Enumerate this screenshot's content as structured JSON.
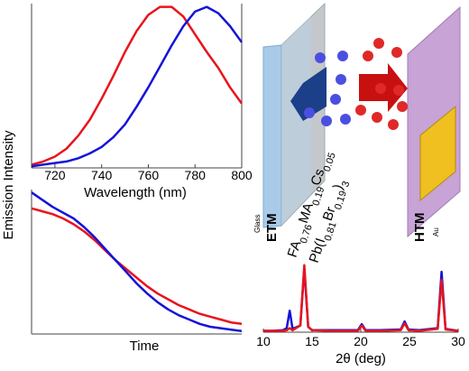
{
  "figure": {
    "ylabel": "Emission Intensity"
  },
  "diagram": {
    "glass": "Glass",
    "etm": "ETM",
    "htm": "HTM",
    "au": "Au",
    "formula_line1": [
      "FA",
      "0.76",
      "MA",
      "0.19",
      "Cs",
      "0.05"
    ],
    "formula_line2": [
      "Pb(I",
      "0.81",
      "Br",
      "0.19",
      ")",
      "3"
    ]
  },
  "chart_data": [
    {
      "type": "line",
      "xlabel": "Wavelength (nm)",
      "x": [
        710,
        715,
        720,
        725,
        730,
        735,
        740,
        745,
        750,
        755,
        760,
        765,
        770,
        775,
        780,
        785,
        790,
        795,
        800
      ],
      "xlim": [
        710,
        800
      ],
      "xticks": [
        720,
        740,
        760,
        780,
        800
      ],
      "ylim": [
        0,
        1.02
      ],
      "series": [
        {
          "color": "#e8141c",
          "values": [
            0.02,
            0.04,
            0.07,
            0.12,
            0.2,
            0.3,
            0.43,
            0.57,
            0.72,
            0.85,
            0.95,
            1.0,
            1.0,
            0.94,
            0.83,
            0.72,
            0.62,
            0.5,
            0.4
          ]
        },
        {
          "color": "#1414d8",
          "values": [
            0.01,
            0.02,
            0.03,
            0.04,
            0.06,
            0.09,
            0.13,
            0.19,
            0.27,
            0.38,
            0.5,
            0.63,
            0.76,
            0.88,
            0.97,
            1.0,
            0.96,
            0.88,
            0.78
          ]
        }
      ]
    },
    {
      "type": "line",
      "xlabel": "Time",
      "categories": [
        null,
        null,
        null,
        null,
        null,
        null,
        null,
        null,
        null,
        null,
        null,
        null,
        null,
        null,
        null,
        null,
        null,
        null,
        null,
        null,
        null
      ],
      "ylim": [
        0,
        1
      ],
      "series": [
        {
          "color": "#e8141c",
          "values": [
            0.87,
            0.85,
            0.83,
            0.8,
            0.76,
            0.71,
            0.65,
            0.58,
            0.51,
            0.45,
            0.39,
            0.33,
            0.28,
            0.24,
            0.2,
            0.17,
            0.14,
            0.12,
            0.1,
            0.08,
            0.07
          ]
        },
        {
          "color": "#1414d8",
          "values": [
            0.98,
            0.93,
            0.88,
            0.84,
            0.8,
            0.74,
            0.67,
            0.59,
            0.51,
            0.43,
            0.35,
            0.28,
            0.22,
            0.17,
            0.13,
            0.1,
            0.07,
            0.05,
            0.04,
            0.03,
            0.02
          ]
        }
      ]
    },
    {
      "type": "line",
      "xlabel": "2θ (deg)",
      "x": [
        10,
        11,
        12,
        12.4,
        12.7,
        13,
        13.8,
        14.2,
        14.6,
        15,
        17,
        19.7,
        20.1,
        20.5,
        22,
        24.1,
        24.5,
        24.9,
        26,
        27.9,
        28.3,
        28.7,
        30
      ],
      "xlim": [
        10,
        30
      ],
      "xticks": [
        10,
        15,
        20,
        25,
        30
      ],
      "ylim": [
        0,
        1.05
      ],
      "series": [
        {
          "color": "#1414d8",
          "values": [
            0.02,
            0.02,
            0.03,
            0.06,
            0.32,
            0.05,
            0.1,
            0.95,
            0.08,
            0.03,
            0.03,
            0.03,
            0.12,
            0.03,
            0.03,
            0.04,
            0.16,
            0.04,
            0.03,
            0.06,
            0.9,
            0.05,
            0.02
          ]
        },
        {
          "color": "#e8141c",
          "values": [
            0.02,
            0.02,
            0.02,
            0.03,
            0.06,
            0.03,
            0.1,
            1.0,
            0.08,
            0.03,
            0.02,
            0.02,
            0.1,
            0.02,
            0.02,
            0.03,
            0.13,
            0.03,
            0.02,
            0.05,
            0.78,
            0.04,
            0.02
          ]
        }
      ]
    }
  ]
}
